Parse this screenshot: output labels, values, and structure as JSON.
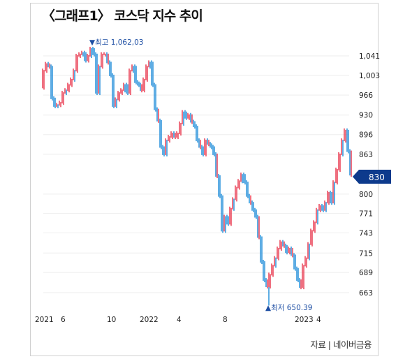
{
  "title": "〈그래프1〉 코스닥 지수 추이",
  "source": "자료 | 네이버금융",
  "colors": {
    "up": "#e8334a",
    "down": "#1a8ad8",
    "annotation": "#1d4ea3",
    "current_box": "#0d3a8c",
    "grid": "#eeeeee"
  },
  "chart_data": {
    "type": "line",
    "style": "candlestick",
    "title": "〈그래프1〉 코스닥 지수 추이",
    "scale": "log",
    "ylim": [
      645,
      1075
    ],
    "yticks": [
      "1,041",
      "1,003",
      "966",
      "930",
      "896",
      "863",
      "800",
      "771",
      "743",
      "715",
      "689",
      "663"
    ],
    "ytick_values": [
      1041,
      1003,
      966,
      930,
      896,
      863,
      800,
      771,
      743,
      715,
      689,
      663
    ],
    "xticks": [
      {
        "label": "2021",
        "at": 0
      },
      {
        "label": "6",
        "at": 7.5
      },
      {
        "label": "10",
        "at": 24
      },
      {
        "label": "2022",
        "at": 37.5
      },
      {
        "label": "4",
        "at": 49
      },
      {
        "label": "8",
        "at": 65.5
      },
      {
        "label": "2023",
        "at": 93
      },
      {
        "label": "4",
        "at": 99
      }
    ],
    "values": [
      980,
      1012,
      1025,
      1020,
      960,
      946,
      948,
      952,
      970,
      975,
      985,
      995,
      1012,
      1041,
      1044,
      1047,
      1032,
      1041,
      1055,
      1044,
      970,
      1020,
      1044,
      1044,
      1028,
      1003,
      946,
      958,
      970,
      975,
      985,
      970,
      1012,
      1020,
      990,
      985,
      975,
      995,
      1020,
      1028,
      985,
      940,
      920,
      875,
      863,
      886,
      892,
      898,
      892,
      898,
      915,
      935,
      925,
      930,
      918,
      910,
      886,
      875,
      863,
      886,
      880,
      875,
      863,
      828,
      797,
      746,
      766,
      756,
      778,
      792,
      810,
      820,
      830,
      818,
      797,
      787,
      776,
      766,
      737,
      703,
      679,
      671,
      686,
      698,
      708,
      721,
      730,
      725,
      716,
      721,
      712,
      694,
      679,
      670,
      698,
      708,
      727,
      746,
      758,
      776,
      782,
      776,
      787,
      802,
      787,
      818,
      838,
      863,
      886,
      903,
      868,
      830
    ],
    "annotations": {
      "high": {
        "label": "▼최고 1,062,03",
        "value": 1062.03,
        "at": 18
      },
      "low": {
        "label": "▲최저 650.39",
        "value": 650.39,
        "at": 81
      },
      "current": {
        "label": "830",
        "value": 830
      }
    }
  }
}
